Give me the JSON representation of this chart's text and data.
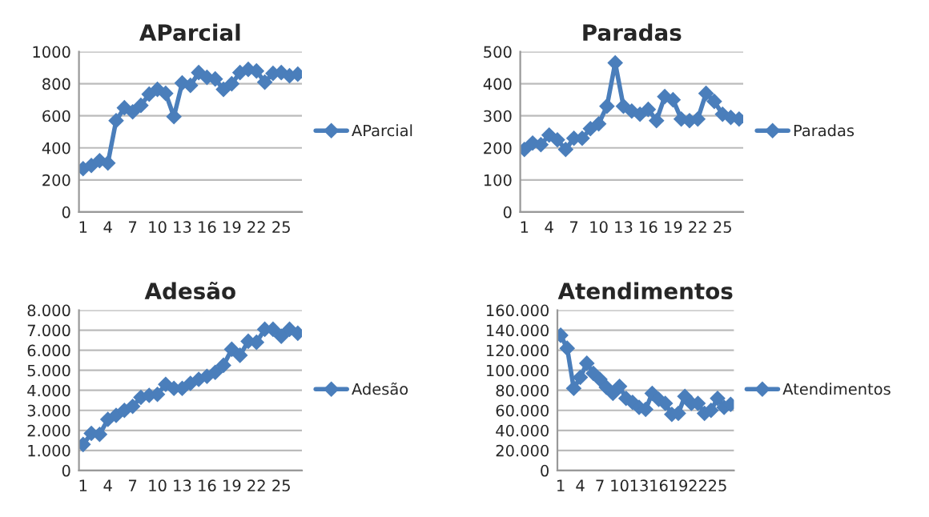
{
  "chart_data": [
    {
      "type": "line",
      "title": "AParcial",
      "categories": [
        "1",
        null,
        null,
        "4",
        null,
        null,
        "7",
        null,
        null,
        "10",
        null,
        null,
        "13",
        null,
        null,
        "16",
        null,
        null,
        "19",
        null,
        null,
        "22",
        null,
        null,
        "25",
        null,
        null
      ],
      "series": [
        {
          "name": "AParcial",
          "color": "#4a7ebb",
          "values": [
            270,
            290,
            320,
            305,
            570,
            650,
            625,
            665,
            735,
            765,
            740,
            595,
            805,
            790,
            870,
            840,
            830,
            765,
            800,
            870,
            890,
            880,
            810,
            865,
            870,
            850,
            860
          ]
        }
      ],
      "ylim": [
        0,
        1000
      ],
      "yticks": [
        0,
        200,
        400,
        600,
        800,
        1000
      ],
      "grid": "y",
      "legend": "right",
      "marker": "diamond",
      "line_style": "solid"
    },
    {
      "type": "line",
      "title": "Paradas",
      "categories": [
        "1",
        null,
        null,
        "4",
        null,
        null,
        "7",
        null,
        null,
        "10",
        null,
        null,
        "13",
        null,
        null,
        "16",
        null,
        null,
        "19",
        null,
        null,
        "22",
        null,
        null,
        "25",
        null,
        null
      ],
      "series": [
        {
          "name": "Paradas",
          "color": "#4a7ebb",
          "values": [
            195,
            215,
            210,
            240,
            225,
            195,
            230,
            230,
            260,
            275,
            330,
            465,
            330,
            315,
            305,
            320,
            285,
            360,
            350,
            290,
            285,
            290,
            370,
            345,
            305,
            295,
            290
          ]
        }
      ],
      "ylim": [
        0,
        500
      ],
      "yticks": [
        0,
        100,
        200,
        300,
        400,
        500
      ],
      "grid": "y",
      "legend": "right",
      "marker": "diamond",
      "line_style": "solid"
    },
    {
      "type": "line",
      "title": "Adesão",
      "categories": [
        "1",
        null,
        null,
        "4",
        null,
        null,
        "7",
        null,
        null,
        "10",
        null,
        null,
        "13",
        null,
        null,
        "16",
        null,
        null,
        "19",
        null,
        null,
        "22",
        null,
        null,
        "25",
        null,
        null
      ],
      "series": [
        {
          "name": "Adesão",
          "color": "#4a7ebb",
          "values": [
            1300,
            1850,
            1800,
            2550,
            2750,
            3000,
            3200,
            3650,
            3750,
            3800,
            4300,
            4100,
            4100,
            4350,
            4550,
            4700,
            4900,
            5250,
            6050,
            5750,
            6450,
            6400,
            7050,
            7050,
            6700,
            7050,
            6850
          ]
        }
      ],
      "ylim": [
        0,
        8000
      ],
      "yticks": [
        0,
        {
          "value": 1000,
          "label": "1.000"
        },
        {
          "value": 2000,
          "label": "2.000"
        },
        {
          "value": 3000,
          "label": "3.000"
        },
        {
          "value": 4000,
          "label": "4.000"
        },
        {
          "value": 5000,
          "label": "5.000"
        },
        {
          "value": 6000,
          "label": "6.000"
        },
        {
          "value": 7000,
          "label": "7.000"
        },
        {
          "value": 8000,
          "label": "8.000"
        }
      ],
      "grid": "y",
      "legend": "right",
      "marker": "diamond",
      "line_style": "solid"
    },
    {
      "type": "line",
      "title": "Atendimentos",
      "categories": [
        "1",
        null,
        null,
        "4",
        null,
        null,
        "7",
        null,
        null,
        "10",
        null,
        null,
        "13",
        null,
        null,
        "16",
        null,
        null,
        "19",
        null,
        null,
        "22",
        null,
        null,
        "25",
        null,
        null
      ],
      "series": [
        {
          "name": "Atendimentos",
          "color": "#4a7ebb",
          "values": [
            135000,
            122000,
            82000,
            93000,
            107000,
            97000,
            91000,
            83000,
            77000,
            84000,
            72000,
            68000,
            63000,
            61000,
            77000,
            71000,
            67000,
            56000,
            57000,
            74000,
            67000,
            67000,
            57000,
            60000,
            72000,
            63000,
            66000
          ]
        }
      ],
      "ylim": [
        0,
        160000
      ],
      "yticks": [
        0,
        {
          "value": 20000,
          "label": "20.000"
        },
        {
          "value": 40000,
          "label": "40.000"
        },
        {
          "value": 60000,
          "label": "60.000"
        },
        {
          "value": 80000,
          "label": "80.000"
        },
        {
          "value": 100000,
          "label": "100.000"
        },
        {
          "value": 120000,
          "label": "120.000"
        },
        {
          "value": 140000,
          "label": "140.000"
        },
        {
          "value": 160000,
          "label": "160.000"
        }
      ],
      "grid": "y",
      "legend": "right",
      "marker": "diamond",
      "line_style": "solid"
    }
  ]
}
